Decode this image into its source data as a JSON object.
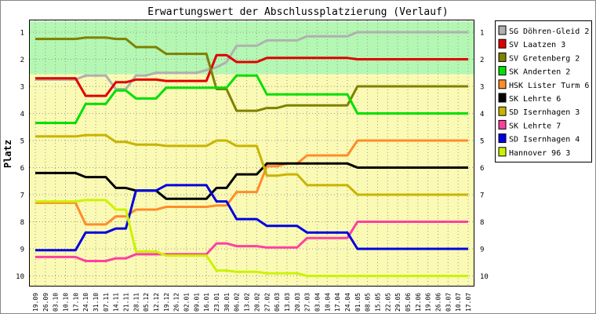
{
  "chart_data": {
    "type": "line",
    "title": "Erwartungswert der Abschlussplatzierung (Verlauf)",
    "ylabel": "Platz",
    "xlabel": "",
    "ylim": [
      1,
      10
    ],
    "y_axis_inverted": true,
    "yticks": [
      "1",
      "2",
      "3",
      "4",
      "5",
      "6",
      "7",
      "8",
      "9",
      "10"
    ],
    "grid": true,
    "bands": [
      {
        "from": 0.6,
        "to": 2.55,
        "color": "#b3f7b3"
      },
      {
        "from": 2.55,
        "to": 10.6,
        "color": "#fafab4"
      }
    ],
    "legend_position": "right",
    "categories": [
      "19.09",
      "26.09",
      "03.10",
      "10.10",
      "17.10",
      "24.10",
      "31.10",
      "07.11",
      "14.11",
      "21.11",
      "28.11",
      "05.12",
      "12.12",
      "19.12",
      "26.12",
      "02.01",
      "09.01",
      "16.01",
      "23.01",
      "30.01",
      "06.02",
      "13.02",
      "20.02",
      "27.02",
      "06.03",
      "13.03",
      "20.03",
      "27.03",
      "03.04",
      "10.04",
      "17.04",
      "24.04",
      "01.05",
      "08.05",
      "15.05",
      "22.05",
      "29.05",
      "05.06",
      "12.06",
      "19.06",
      "26.06",
      "03.07",
      "10.07",
      "17.07"
    ],
    "series": [
      {
        "name": "SG Döhren-Gleid 2",
        "color": "#b0b0b0",
        "values": [
          2.75,
          2.75,
          2.75,
          2.75,
          2.75,
          2.6,
          2.6,
          2.6,
          3.1,
          3.1,
          2.6,
          2.6,
          2.5,
          2.5,
          2.5,
          2.5,
          2.5,
          2.4,
          2.3,
          2.1,
          1.5,
          1.5,
          1.5,
          1.3,
          1.3,
          1.3,
          1.3,
          1.15,
          1.15,
          1.15,
          1.15,
          1.15,
          1.0,
          1.0,
          1.0,
          1.0,
          1.0,
          1.0,
          1.0,
          1.0,
          1.0,
          1.0,
          1.0,
          1.0
        ]
      },
      {
        "name": "SV Laatzen 3",
        "color": "#e00000",
        "values": [
          2.7,
          2.7,
          2.7,
          2.7,
          2.7,
          3.35,
          3.35,
          3.35,
          2.85,
          2.85,
          2.75,
          2.75,
          2.75,
          2.8,
          2.8,
          2.8,
          2.8,
          2.8,
          1.85,
          1.85,
          2.1,
          2.1,
          2.1,
          1.95,
          1.95,
          1.95,
          1.95,
          1.95,
          1.95,
          1.95,
          1.95,
          1.95,
          2.0,
          2.0,
          2.0,
          2.0,
          2.0,
          2.0,
          2.0,
          2.0,
          2.0,
          2.0,
          2.0,
          2.0
        ]
      },
      {
        "name": "SV Gretenberg 2",
        "color": "#808000",
        "values": [
          1.25,
          1.25,
          1.25,
          1.25,
          1.25,
          1.2,
          1.2,
          1.2,
          1.25,
          1.25,
          1.55,
          1.55,
          1.55,
          1.8,
          1.8,
          1.8,
          1.8,
          1.8,
          3.1,
          3.1,
          3.9,
          3.9,
          3.9,
          3.8,
          3.8,
          3.7,
          3.7,
          3.7,
          3.7,
          3.7,
          3.7,
          3.7,
          3.0,
          3.0,
          3.0,
          3.0,
          3.0,
          3.0,
          3.0,
          3.0,
          3.0,
          3.0,
          3.0,
          3.0
        ]
      },
      {
        "name": "SK Anderten 2",
        "color": "#00e000",
        "values": [
          4.35,
          4.35,
          4.35,
          4.35,
          4.35,
          3.65,
          3.65,
          3.65,
          3.15,
          3.15,
          3.45,
          3.45,
          3.45,
          3.05,
          3.05,
          3.05,
          3.05,
          3.05,
          3.05,
          3.05,
          2.6,
          2.6,
          2.6,
          3.3,
          3.3,
          3.3,
          3.3,
          3.3,
          3.3,
          3.3,
          3.3,
          3.3,
          4.0,
          4.0,
          4.0,
          4.0,
          4.0,
          4.0,
          4.0,
          4.0,
          4.0,
          4.0,
          4.0,
          4.0
        ]
      },
      {
        "name": "HSK Lister Turm 6",
        "color": "#ff8c2a",
        "values": [
          7.3,
          7.3,
          7.3,
          7.3,
          7.3,
          8.1,
          8.1,
          8.1,
          7.8,
          7.8,
          7.55,
          7.55,
          7.55,
          7.45,
          7.45,
          7.45,
          7.45,
          7.45,
          7.4,
          7.4,
          6.9,
          6.9,
          6.9,
          5.95,
          5.95,
          5.85,
          5.85,
          5.55,
          5.55,
          5.55,
          5.55,
          5.55,
          5.0,
          5.0,
          5.0,
          5.0,
          5.0,
          5.0,
          5.0,
          5.0,
          5.0,
          5.0,
          5.0,
          5.0
        ]
      },
      {
        "name": "SK Lehrte 6",
        "color": "#000000",
        "values": [
          6.2,
          6.2,
          6.2,
          6.2,
          6.2,
          6.35,
          6.35,
          6.35,
          6.75,
          6.75,
          6.85,
          6.85,
          6.85,
          7.15,
          7.15,
          7.15,
          7.15,
          7.15,
          6.75,
          6.75,
          6.25,
          6.25,
          6.25,
          5.85,
          5.85,
          5.85,
          5.85,
          5.85,
          5.85,
          5.85,
          5.85,
          5.85,
          6.0,
          6.0,
          6.0,
          6.0,
          6.0,
          6.0,
          6.0,
          6.0,
          6.0,
          6.0,
          6.0,
          6.0
        ]
      },
      {
        "name": "SD Isernhagen 3",
        "color": "#c8b400",
        "values": [
          4.85,
          4.85,
          4.85,
          4.85,
          4.85,
          4.8,
          4.8,
          4.8,
          5.05,
          5.05,
          5.15,
          5.15,
          5.15,
          5.2,
          5.2,
          5.2,
          5.2,
          5.2,
          5.0,
          5.0,
          5.2,
          5.2,
          5.2,
          6.3,
          6.3,
          6.25,
          6.25,
          6.65,
          6.65,
          6.65,
          6.65,
          6.65,
          7.0,
          7.0,
          7.0,
          7.0,
          7.0,
          7.0,
          7.0,
          7.0,
          7.0,
          7.0,
          7.0,
          7.0
        ]
      },
      {
        "name": "SK Lehrte 7",
        "color": "#ff3fa0",
        "values": [
          9.3,
          9.3,
          9.3,
          9.3,
          9.3,
          9.45,
          9.45,
          9.45,
          9.35,
          9.35,
          9.2,
          9.2,
          9.2,
          9.2,
          9.2,
          9.2,
          9.2,
          9.2,
          8.8,
          8.8,
          8.9,
          8.9,
          8.9,
          8.95,
          8.95,
          8.95,
          8.95,
          8.6,
          8.6,
          8.6,
          8.6,
          8.6,
          8.0,
          8.0,
          8.0,
          8.0,
          8.0,
          8.0,
          8.0,
          8.0,
          8.0,
          8.0,
          8.0,
          8.0
        ]
      },
      {
        "name": "SD Isernhagen 4",
        "color": "#0000e0",
        "values": [
          9.05,
          9.05,
          9.05,
          9.05,
          9.05,
          8.4,
          8.4,
          8.4,
          8.25,
          8.25,
          6.85,
          6.85,
          6.85,
          6.65,
          6.65,
          6.65,
          6.65,
          6.65,
          7.25,
          7.25,
          7.9,
          7.9,
          7.9,
          8.15,
          8.15,
          8.15,
          8.15,
          8.4,
          8.4,
          8.4,
          8.4,
          8.4,
          9.0,
          9.0,
          9.0,
          9.0,
          9.0,
          9.0,
          9.0,
          9.0,
          9.0,
          9.0,
          9.0,
          9.0
        ]
      },
      {
        "name": "Hannover 96 3",
        "color": "#ccf200",
        "values": [
          7.25,
          7.25,
          7.25,
          7.25,
          7.25,
          7.2,
          7.2,
          7.2,
          7.55,
          7.55,
          9.1,
          9.1,
          9.1,
          9.25,
          9.25,
          9.25,
          9.25,
          9.25,
          9.8,
          9.8,
          9.85,
          9.85,
          9.85,
          9.9,
          9.9,
          9.9,
          9.9,
          10.0,
          10.0,
          10.0,
          10.0,
          10.0,
          10.0,
          10.0,
          10.0,
          10.0,
          10.0,
          10.0,
          10.0,
          10.0,
          10.0,
          10.0,
          10.0,
          10.0
        ]
      }
    ]
  }
}
